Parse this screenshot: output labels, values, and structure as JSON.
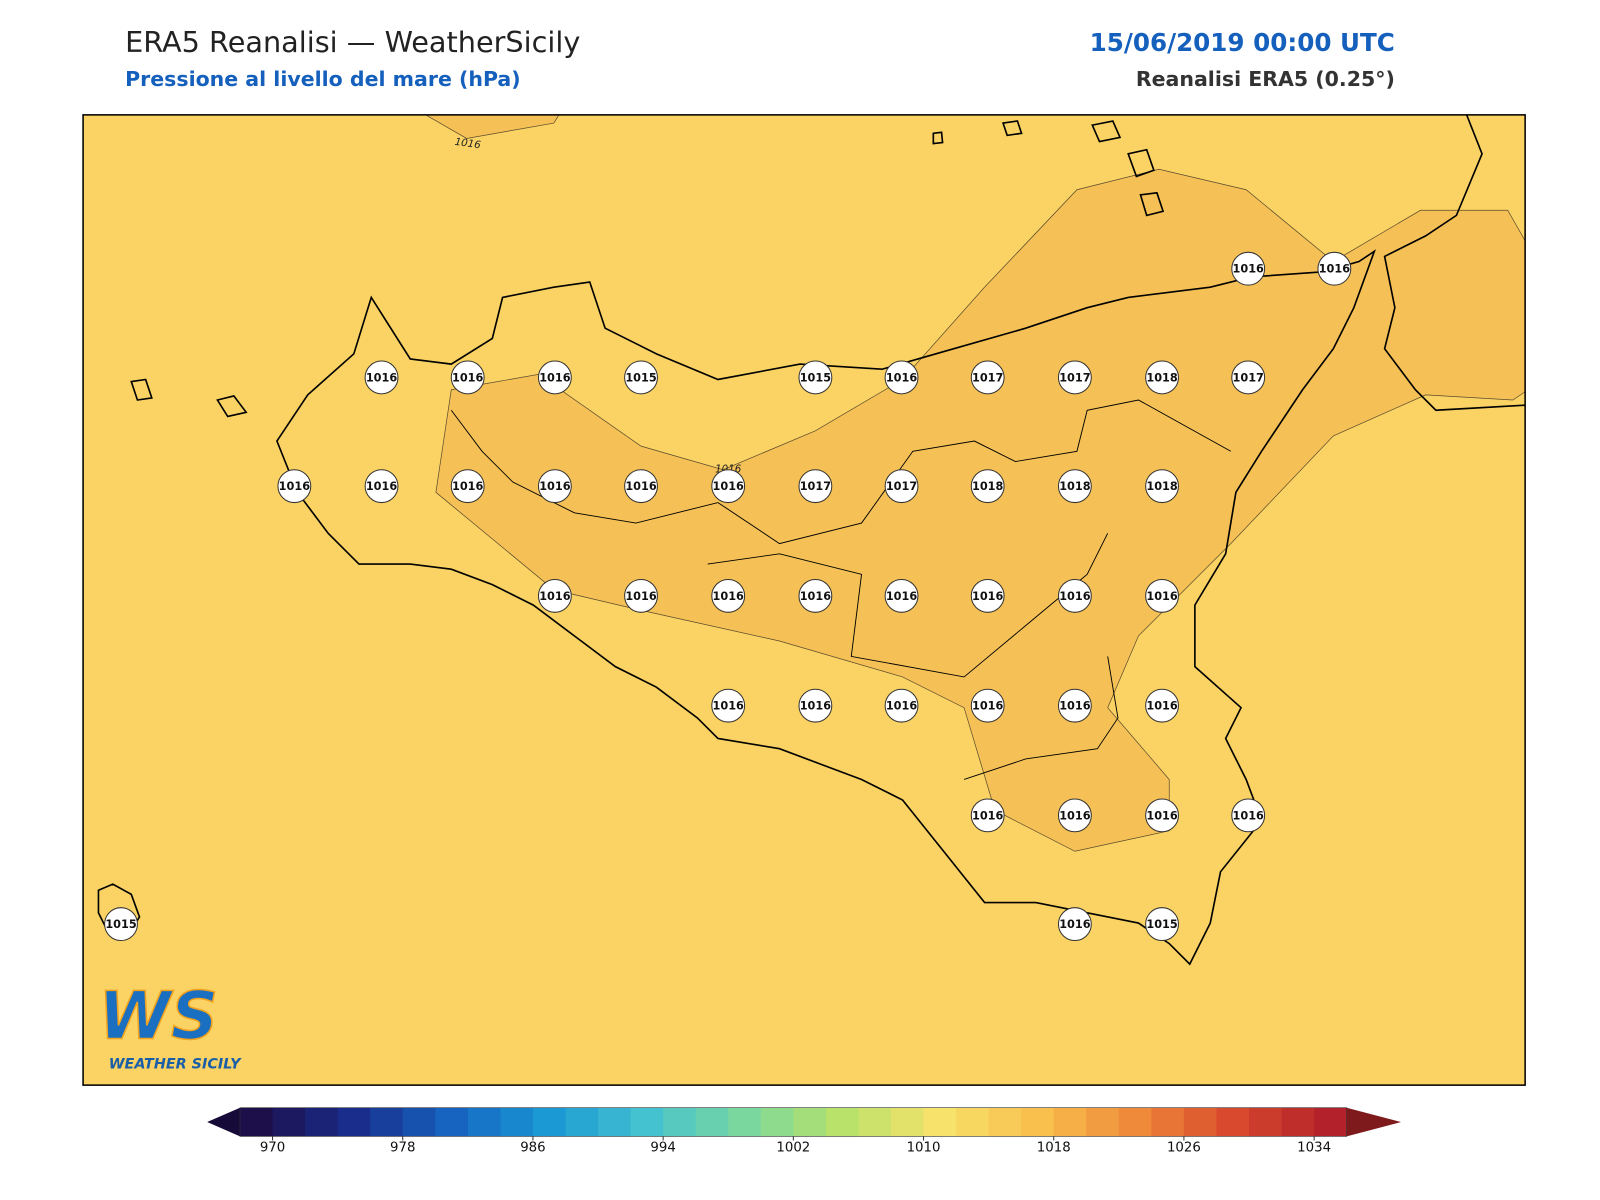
{
  "header": {
    "title": "ERA5 Reanalisi — WeatherSicily",
    "subtitle": "Pressione al livello del mare (hPa)",
    "datetime": "15/06/2019 00:00 UTC",
    "source": "Reanalisi ERA5 (0.25°)"
  },
  "stations": [
    1016,
    1016,
    1016,
    1016,
    1016,
    1015,
    1015,
    1016,
    1017,
    1017,
    1018,
    1017,
    1016,
    1016,
    1016,
    1016,
    1016,
    1016,
    1017,
    1017,
    1018,
    1018,
    1018,
    1016,
    1016,
    1016,
    1016,
    1016,
    1016,
    1016,
    1016,
    1016,
    1016,
    1016,
    1016,
    1016,
    1016,
    1016,
    1016,
    1016,
    1016,
    1015,
    1016,
    1015
  ],
  "contour_labels": [
    1016,
    1016
  ],
  "colorbar": {
    "range": [
      968,
      1036
    ],
    "ticks": [
      970,
      978,
      986,
      994,
      1002,
      1010,
      1018,
      1026,
      1034
    ]
  },
  "logo": {
    "mark": "WS",
    "text": "WEATHER SICILY"
  }
}
